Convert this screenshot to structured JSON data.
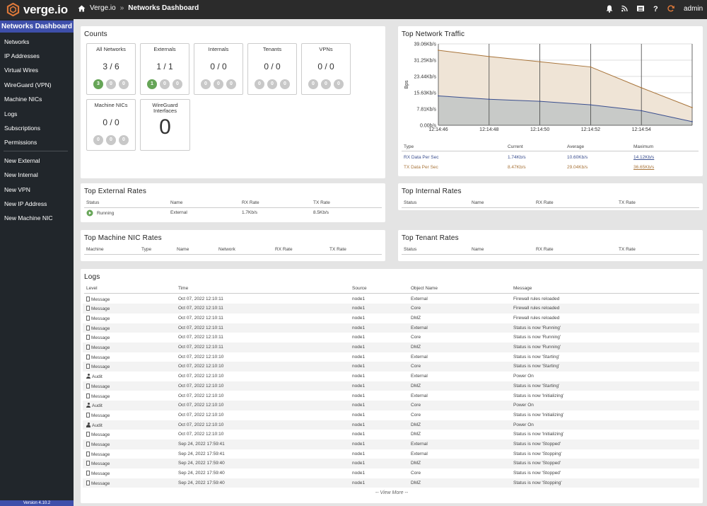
{
  "app": {
    "name": "verge.io",
    "version": "Version 4.10.2"
  },
  "breadcrumb": {
    "home": "Verge.io",
    "separator": "»",
    "current": "Networks Dashboard"
  },
  "topbar": {
    "user": "admin"
  },
  "sidebar": {
    "title": "Networks Dashboard",
    "items": [
      "Networks",
      "IP Addresses",
      "Virtual Wires",
      "WireGuard (VPN)",
      "Machine NICs",
      "Logs",
      "Subscriptions",
      "Permissions"
    ],
    "actions": [
      "New External",
      "New Internal",
      "New VPN",
      "New IP Address",
      "New Machine NIC"
    ]
  },
  "counts": {
    "title": "Counts",
    "boxes": [
      {
        "label": "All Networks",
        "value": "3 / 6",
        "dots": [
          "3",
          "0",
          "0"
        ]
      },
      {
        "label": "Externals",
        "value": "1 / 1",
        "dots": [
          "1",
          "0",
          "0"
        ]
      },
      {
        "label": "Internals",
        "value": "0 / 0",
        "dots": [
          "0",
          "0",
          "0"
        ]
      },
      {
        "label": "Tenants",
        "value": "0 / 0",
        "dots": [
          "0",
          "0",
          "0"
        ]
      },
      {
        "label": "VPNs",
        "value": "0 / 0",
        "dots": [
          "0",
          "0",
          "0"
        ]
      },
      {
        "label": "Machine NICs",
        "value": "0 / 0",
        "dots": [
          "0",
          "0",
          "0"
        ]
      },
      {
        "label": "WireGuard Interfaces",
        "value": "0"
      }
    ]
  },
  "traffic": {
    "title": "Top Network Traffic",
    "headers": [
      "Type",
      "Current",
      "Average",
      "Maximum"
    ],
    "rows": [
      {
        "type": "RX Data Per Sec",
        "current": "1.74Kb/s",
        "average": "10.60Kb/s",
        "maximum": "14.12Kb/s"
      },
      {
        "type": "TX Data Per Sec",
        "current": "8.47Kb/s",
        "average": "29.04Kb/s",
        "maximum": "36.65Kb/s"
      }
    ]
  },
  "chart_data": {
    "type": "area",
    "title": "Top Network Traffic",
    "ylabel": "Bps",
    "y_ticks": [
      "0.00b/s",
      "7.81Kb/s",
      "15.63Kb/s",
      "23.44Kb/s",
      "31.25Kb/s",
      "39.06Kb/s"
    ],
    "x_ticks": [
      "12:14:46",
      "12:14:48",
      "12:14:50",
      "12:14:52",
      "12:14:54"
    ],
    "ylim": [
      0,
      39.06
    ],
    "x": [
      0,
      2,
      4,
      6,
      8,
      10
    ],
    "series": [
      {
        "name": "TX Data Per Sec",
        "color": "#a8743a",
        "fill": "#efe4d6",
        "values": [
          36.0,
          33.0,
          30.5,
          28.0,
          18.0,
          8.5
        ]
      },
      {
        "name": "RX Data Per Sec",
        "color": "#3b4f8f",
        "fill": "#c8cac8",
        "values": [
          14.1,
          12.5,
          11.5,
          9.8,
          7.0,
          1.74
        ]
      }
    ]
  },
  "external_rates": {
    "title": "Top External Rates",
    "headers": [
      "Status",
      "Name",
      "RX Rate",
      "TX Rate"
    ],
    "rows": [
      {
        "status": "Running",
        "name": "External",
        "rx": "1.7Kb/s",
        "tx": "8.5Kb/s"
      }
    ]
  },
  "internal_rates": {
    "title": "Top Internal Rates",
    "headers": [
      "Status",
      "Name",
      "RX Rate",
      "TX Rate"
    ]
  },
  "machine_nic_rates": {
    "title": "Top Machine NIC Rates",
    "headers": [
      "Machine",
      "Type",
      "Name",
      "Network",
      "RX Rate",
      "TX Rate"
    ]
  },
  "tenant_rates": {
    "title": "Top Tenant Rates",
    "headers": [
      "Status",
      "Name",
      "RX Rate",
      "TX Rate"
    ]
  },
  "logs": {
    "title": "Logs",
    "headers": [
      "Level",
      "Time",
      "Source",
      "Object Name",
      "Message"
    ],
    "view_more": "-- View More --",
    "rows": [
      {
        "level": "Message",
        "time": "Oct 07, 2022 12:10:11",
        "source": "node1",
        "object": "External",
        "message": "Firewall rules reloaded"
      },
      {
        "level": "Message",
        "time": "Oct 07, 2022 12:10:11",
        "source": "node1",
        "object": "Core",
        "message": "Firewall rules reloaded"
      },
      {
        "level": "Message",
        "time": "Oct 07, 2022 12:10:11",
        "source": "node1",
        "object": "DMZ",
        "message": "Firewall rules reloaded"
      },
      {
        "level": "Message",
        "time": "Oct 07, 2022 12:10:11",
        "source": "node1",
        "object": "External",
        "message": "Status is now 'Running'"
      },
      {
        "level": "Message",
        "time": "Oct 07, 2022 12:10:11",
        "source": "node1",
        "object": "Core",
        "message": "Status is now 'Running'"
      },
      {
        "level": "Message",
        "time": "Oct 07, 2022 12:10:11",
        "source": "node1",
        "object": "DMZ",
        "message": "Status is now 'Running'"
      },
      {
        "level": "Message",
        "time": "Oct 07, 2022 12:10:10",
        "source": "node1",
        "object": "External",
        "message": "Status is now 'Starting'"
      },
      {
        "level": "Message",
        "time": "Oct 07, 2022 12:10:10",
        "source": "node1",
        "object": "Core",
        "message": "Status is now 'Starting'"
      },
      {
        "level": "Audit",
        "time": "Oct 07, 2022 12:10:10",
        "source": "node1",
        "object": "External",
        "message": "Power On"
      },
      {
        "level": "Message",
        "time": "Oct 07, 2022 12:10:10",
        "source": "node1",
        "object": "DMZ",
        "message": "Status is now 'Starting'"
      },
      {
        "level": "Message",
        "time": "Oct 07, 2022 12:10:10",
        "source": "node1",
        "object": "External",
        "message": "Status is now 'Initializing'"
      },
      {
        "level": "Audit",
        "time": "Oct 07, 2022 12:10:10",
        "source": "node1",
        "object": "Core",
        "message": "Power On"
      },
      {
        "level": "Message",
        "time": "Oct 07, 2022 12:10:10",
        "source": "node1",
        "object": "Core",
        "message": "Status is now 'Initializing'"
      },
      {
        "level": "Audit",
        "time": "Oct 07, 2022 12:10:10",
        "source": "node1",
        "object": "DMZ",
        "message": "Power On"
      },
      {
        "level": "Message",
        "time": "Oct 07, 2022 12:10:10",
        "source": "node1",
        "object": "DMZ",
        "message": "Status is now 'Initializing'"
      },
      {
        "level": "Message",
        "time": "Sep 24, 2022 17:59:41",
        "source": "node1",
        "object": "External",
        "message": "Status is now 'Stopped'"
      },
      {
        "level": "Message",
        "time": "Sep 24, 2022 17:59:41",
        "source": "node1",
        "object": "External",
        "message": "Status is now 'Stopping'"
      },
      {
        "level": "Message",
        "time": "Sep 24, 2022 17:59:40",
        "source": "node1",
        "object": "DMZ",
        "message": "Status is now 'Stopped'"
      },
      {
        "level": "Message",
        "time": "Sep 24, 2022 17:59:40",
        "source": "node1",
        "object": "Core",
        "message": "Status is now 'Stopped'"
      },
      {
        "level": "Message",
        "time": "Sep 24, 2022 17:59:40",
        "source": "node1",
        "object": "DMZ",
        "message": "Status is now 'Stopping'"
      }
    ]
  }
}
